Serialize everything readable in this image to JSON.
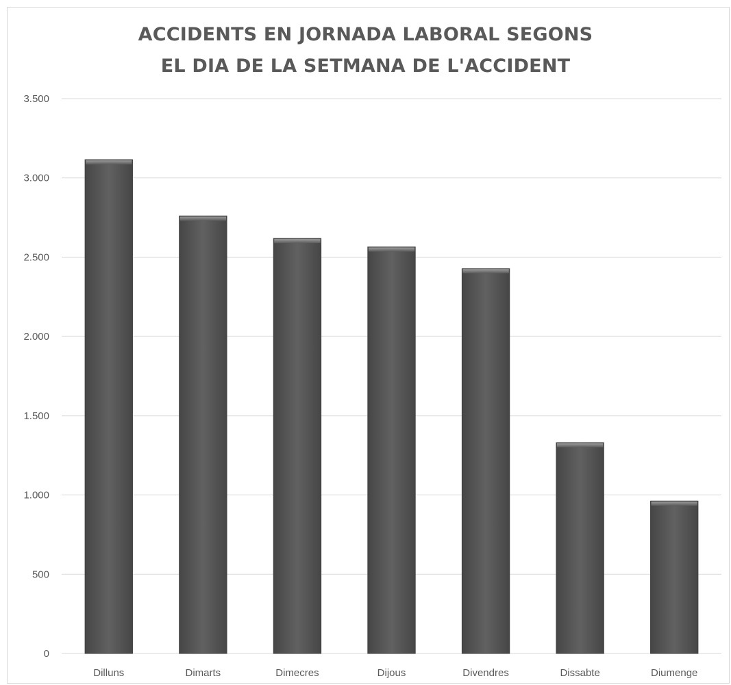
{
  "chart_data": {
    "type": "bar",
    "title_lines": [
      "ACCIDENTS EN JORNADA LABORAL SEGONS",
      "EL DIA DE LA SETMANA DE L'ACCIDENT"
    ],
    "categories": [
      "Dilluns",
      "Dimarts",
      "Dimecres",
      "Dijous",
      "Divendres",
      "Dissabte",
      "Diumenge"
    ],
    "values": [
      3115,
      2760,
      2618,
      2565,
      2428,
      1330,
      962
    ],
    "ylim": [
      0,
      3500
    ],
    "yticks": [
      0,
      500,
      1000,
      1500,
      2000,
      2500,
      3000,
      3500
    ],
    "ytick_labels": [
      "0",
      "500",
      "1.000",
      "1.500",
      "2.000",
      "2.500",
      "3.000",
      "3.500"
    ],
    "grid": true,
    "legend": "none",
    "colors": {
      "bar": "#5a5a5a",
      "bar_edge": "#404040",
      "grid": "#d9d9d9",
      "text": "#595959"
    }
  }
}
